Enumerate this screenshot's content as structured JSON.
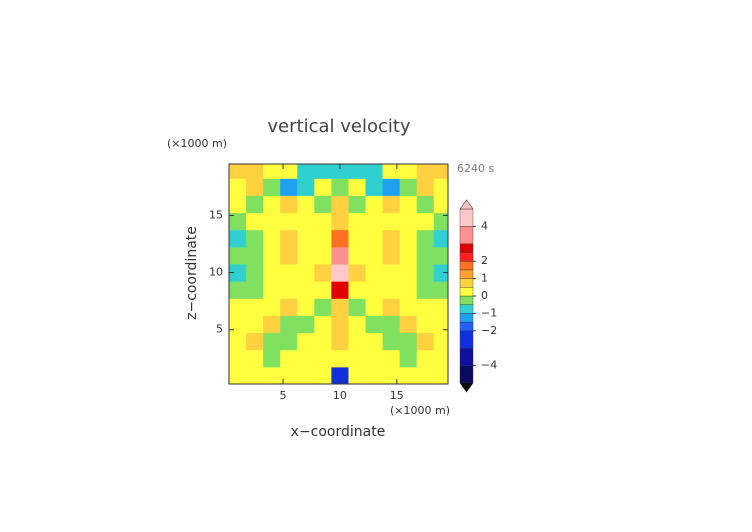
{
  "chart_data": {
    "type": "contour",
    "title": "vertical velocity",
    "y_unit_label": "(×1000 m)",
    "x_unit_label": "(×1000 m)",
    "time_label": "6240 s",
    "xlabel": "x−coordinate",
    "ylabel": "z−coordinate",
    "xlim": [
      0.25,
      19.5
    ],
    "ylim": [
      0.25,
      19.5
    ],
    "xticks": [
      5,
      10,
      15
    ],
    "yticks": [
      5,
      10,
      15
    ],
    "x": [
      1,
      2.5,
      4,
      5.5,
      7,
      8.5,
      10,
      11.5,
      13,
      14.5,
      16,
      17.5,
      19
    ],
    "y": [
      1,
      2.5,
      4,
      5.5,
      7,
      8.5,
      10,
      11.5,
      13,
      14.5,
      16,
      17.5,
      19
    ],
    "z": [
      [
        0.2,
        0.2,
        0.2,
        0.3,
        0.2,
        0.1,
        -3,
        0.1,
        0.2,
        0.3,
        0.2,
        0.2,
        0.2
      ],
      [
        0.3,
        0.2,
        -0.2,
        0.3,
        0.2,
        0.2,
        0.4,
        0.2,
        0.2,
        0.3,
        -0.2,
        0.2,
        0.3
      ],
      [
        0.2,
        0.6,
        -0.3,
        -0.2,
        0.3,
        0.3,
        0.8,
        0.3,
        0.3,
        -0.2,
        -0.3,
        0.6,
        0.2
      ],
      [
        0.2,
        0.3,
        0.6,
        -0.3,
        -0.2,
        0.3,
        0.8,
        0.3,
        -0.2,
        -0.3,
        0.6,
        0.3,
        0.2
      ],
      [
        0.3,
        0.2,
        0.3,
        0.6,
        0.2,
        -0.2,
        0.9,
        -0.2,
        0.2,
        0.6,
        0.3,
        0.2,
        0.3
      ],
      [
        -0.4,
        -0.2,
        0.3,
        0.2,
        0.2,
        0.3,
        2.6,
        0.3,
        0.2,
        0.2,
        0.3,
        -0.2,
        -0.4
      ],
      [
        -0.7,
        -0.3,
        0.2,
        0.2,
        0.3,
        0.6,
        4.5,
        0.6,
        0.3,
        0.2,
        0.2,
        -0.3,
        -0.7
      ],
      [
        -0.5,
        -0.2,
        0.3,
        0.7,
        0.2,
        0.3,
        3.8,
        0.3,
        0.2,
        0.7,
        0.3,
        -0.2,
        -0.5
      ],
      [
        -0.8,
        -0.4,
        0.2,
        0.7,
        0.2,
        0.2,
        1.6,
        0.2,
        0.2,
        0.7,
        0.2,
        -0.4,
        -0.8
      ],
      [
        -0.3,
        0.2,
        0.3,
        0.2,
        0.2,
        0.3,
        0.5,
        0.3,
        0.2,
        0.2,
        0.3,
        0.2,
        -0.3
      ],
      [
        0.3,
        -0.2,
        0.2,
        0.6,
        0.2,
        -0.2,
        0.7,
        -0.2,
        0.2,
        0.6,
        0.2,
        -0.2,
        0.3
      ],
      [
        0.3,
        0.6,
        -0.3,
        -1.2,
        -0.6,
        0.3,
        -0.2,
        0.3,
        -0.6,
        -1.2,
        -0.3,
        0.6,
        0.3
      ],
      [
        0.6,
        0.8,
        0.3,
        0.2,
        -0.6,
        -0.7,
        -0.8,
        -0.7,
        -0.6,
        0.2,
        0.3,
        0.8,
        0.6
      ]
    ],
    "clim": [
      -5,
      5
    ],
    "levels": [
      -5,
      -4,
      -3,
      -2,
      -1.5,
      -1,
      -0.5,
      0,
      0.5,
      1,
      1.5,
      2,
      2.5,
      3,
      4,
      5
    ],
    "colors": [
      "#0a0a60",
      "#1010a0",
      "#1030e0",
      "#2060ff",
      "#20a0f0",
      "#30d0d0",
      "#80e060",
      "#ffff40",
      "#ffd040",
      "#ffa030",
      "#ff7020",
      "#ff2020",
      "#e00000",
      "#ff9090",
      "#ffc8c8"
    ],
    "over_color": "#ffc0c0",
    "under_color": "#000000",
    "cticks": [
      {
        "value": -4,
        "label": "−4"
      },
      {
        "value": -2,
        "label": "−2"
      },
      {
        "value": -1,
        "label": "−1"
      },
      0,
      1,
      2,
      4
    ]
  }
}
